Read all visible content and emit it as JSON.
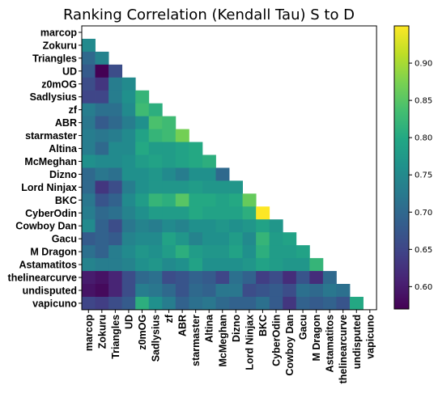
{
  "chart_data": {
    "type": "heatmap",
    "title": "Ranking Correlation (Kendall Tau) S to D",
    "labels": [
      "marcop",
      "Zokuru",
      "Triangles",
      "UD",
      "z0mOG",
      "Sadlysius",
      "zf",
      "ABR",
      "starmaster",
      "Altina",
      "McMeghan",
      "Dizno",
      "Lord Ninjax",
      "BKC",
      "CyberOdin",
      "Cowboy Dan",
      "Gacu",
      "M Dragon",
      "Astamatitos",
      "thelinearcurve",
      "undisputed",
      "vapicuno"
    ],
    "mask": "upper-triangle",
    "colormap": "viridis",
    "vmin": 0.57,
    "vmax": 0.95,
    "colorbar_ticks": [
      "0.60",
      "0.65",
      "0.70",
      "0.75",
      "0.80",
      "0.85",
      "0.90"
    ],
    "colorbar_tick_values": [
      0.6,
      0.65,
      0.7,
      0.75,
      0.8,
      0.85,
      0.9
    ],
    "values": [
      [],
      [
        0.75
      ],
      [
        0.7,
        0.74
      ],
      [
        0.68,
        0.57,
        0.66
      ],
      [
        0.66,
        0.63,
        0.73,
        0.75
      ],
      [
        0.65,
        0.65,
        0.73,
        0.76,
        0.82
      ],
      [
        0.73,
        0.71,
        0.71,
        0.75,
        0.83,
        0.81
      ],
      [
        0.72,
        0.68,
        0.7,
        0.73,
        0.76,
        0.84,
        0.83
      ],
      [
        0.73,
        0.72,
        0.73,
        0.75,
        0.79,
        0.82,
        0.83,
        0.87
      ],
      [
        0.73,
        0.7,
        0.75,
        0.75,
        0.8,
        0.78,
        0.78,
        0.79,
        0.8
      ],
      [
        0.76,
        0.75,
        0.75,
        0.76,
        0.78,
        0.79,
        0.78,
        0.79,
        0.8,
        0.81
      ],
      [
        0.7,
        0.72,
        0.71,
        0.76,
        0.76,
        0.77,
        0.75,
        0.73,
        0.76,
        0.76,
        0.7
      ],
      [
        0.7,
        0.63,
        0.66,
        0.73,
        0.76,
        0.77,
        0.77,
        0.77,
        0.78,
        0.77,
        0.77,
        0.77
      ],
      [
        0.72,
        0.67,
        0.69,
        0.75,
        0.78,
        0.82,
        0.81,
        0.85,
        0.8,
        0.8,
        0.79,
        0.8,
        0.86
      ],
      [
        0.73,
        0.7,
        0.71,
        0.74,
        0.76,
        0.78,
        0.78,
        0.78,
        0.8,
        0.79,
        0.79,
        0.79,
        0.81,
        0.95
      ],
      [
        0.75,
        0.69,
        0.66,
        0.72,
        0.74,
        0.73,
        0.75,
        0.74,
        0.76,
        0.76,
        0.77,
        0.76,
        0.77,
        0.79,
        0.77
      ],
      [
        0.68,
        0.69,
        0.68,
        0.74,
        0.75,
        0.75,
        0.79,
        0.77,
        0.74,
        0.76,
        0.76,
        0.78,
        0.75,
        0.82,
        0.78,
        0.79
      ],
      [
        0.71,
        0.69,
        0.73,
        0.75,
        0.77,
        0.76,
        0.78,
        0.81,
        0.78,
        0.77,
        0.77,
        0.79,
        0.76,
        0.81,
        0.78,
        0.78,
        0.79
      ],
      [
        0.74,
        0.73,
        0.73,
        0.74,
        0.76,
        0.77,
        0.75,
        0.76,
        0.79,
        0.76,
        0.76,
        0.76,
        0.77,
        0.79,
        0.78,
        0.77,
        0.77,
        0.82
      ],
      [
        0.6,
        0.59,
        0.61,
        0.66,
        0.7,
        0.71,
        0.66,
        0.67,
        0.69,
        0.68,
        0.65,
        0.71,
        0.69,
        0.64,
        0.66,
        0.62,
        0.67,
        0.62,
        0.7
      ],
      [
        0.59,
        0.58,
        0.61,
        0.66,
        0.73,
        0.72,
        0.7,
        0.67,
        0.7,
        0.69,
        0.72,
        0.72,
        0.66,
        0.67,
        0.68,
        0.66,
        0.71,
        0.7,
        0.72,
        0.71
      ],
      [
        0.65,
        0.64,
        0.66,
        0.68,
        0.81,
        0.76,
        0.73,
        0.69,
        0.71,
        0.72,
        0.7,
        0.69,
        0.69,
        0.71,
        0.68,
        0.63,
        0.69,
        0.68,
        0.69,
        0.67,
        0.8
      ]
    ]
  }
}
